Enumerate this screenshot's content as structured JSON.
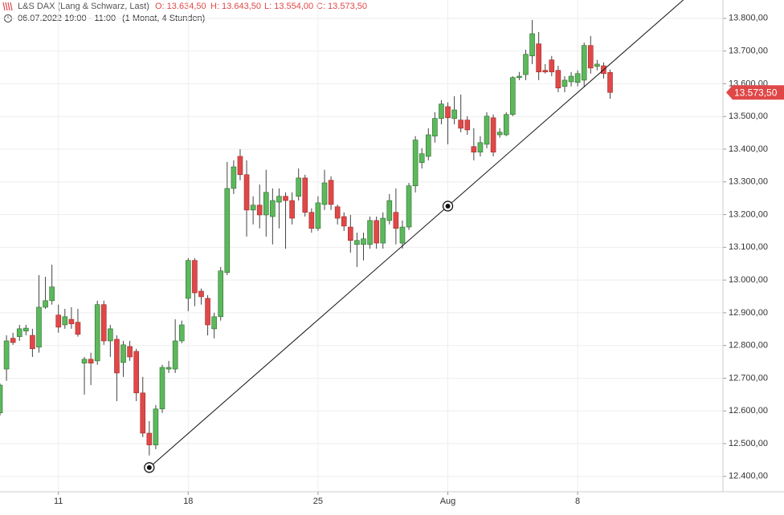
{
  "chart_data": {
    "type": "candlestick",
    "title": "L&S DAX (Lang & Schwarz, Last)",
    "summary": [
      "O: 13.634,50",
      "H: 13.643,50",
      "L: 13.554,00",
      "C: 13.573,50"
    ],
    "subtitle": "06.07.2022 19:00 - 11:00",
    "period": "(1 Monat, 4 Stunden)",
    "up_color": "#5cb85c",
    "down_color": "#e04848",
    "grid": true,
    "categories": [
      null,
      null,
      null,
      null,
      null,
      null,
      null,
      null,
      null,
      "11",
      null,
      null,
      null,
      null,
      null,
      null,
      null,
      null,
      null,
      null,
      null,
      null,
      null,
      null,
      null,
      null,
      null,
      null,
      null,
      "18",
      null,
      null,
      null,
      null,
      null,
      null,
      null,
      null,
      null,
      null,
      null,
      null,
      null,
      null,
      null,
      null,
      null,
      null,
      null,
      "25",
      null,
      null,
      null,
      null,
      null,
      null,
      null,
      null,
      null,
      null,
      null,
      null,
      null,
      null,
      null,
      null,
      null,
      null,
      null,
      "Aug",
      null,
      null,
      null,
      null,
      null,
      null,
      null,
      null,
      null,
      null,
      null,
      null,
      null,
      null,
      null,
      null,
      null,
      null,
      null,
      "8",
      null,
      null,
      null,
      null,
      null
    ],
    "open": [
      12594,
      12728,
      12822,
      12827,
      12844,
      12831,
      12795,
      12917,
      12937,
      12893,
      12863,
      12880,
      12871,
      12746,
      12758,
      12753,
      12925,
      12814,
      12819,
      12748,
      12797,
      12782,
      12655,
      12532,
      12496,
      12606,
      12728,
      12728,
      12814,
      12944,
      13060,
      12966,
      12944,
      12851,
      12888,
      13023,
      13280,
      13378,
      13322,
      13214,
      13229,
      13199,
      13194,
      13238,
      13256,
      13243,
      13256,
      13312,
      13207,
      13158,
      13231,
      13305,
      13224,
      13194,
      13162,
      13109,
      13109,
      13109,
      13182,
      13113,
      13182,
      13207,
      13113,
      13162,
      13288,
      13359,
      13378,
      13440,
      13494,
      13530,
      13494,
      13489,
      13489,
      13408,
      13391,
      13415,
      13496,
      13444,
      13444,
      13506,
      13619,
      13628,
      13685,
      13722,
      13641,
      13673,
      13641,
      13592,
      13606,
      13604,
      13611,
      13717,
      13653,
      13655,
      13634.5
    ],
    "high": [
      12684,
      12831,
      12839,
      12863,
      12863,
      12851,
      13015,
      13010,
      13047,
      12925,
      12912,
      12917,
      12912,
      12765,
      12778,
      12937,
      12937,
      12863,
      12831,
      12814,
      12814,
      12790,
      12704,
      12569,
      12618,
      12741,
      12753,
      12880,
      12876,
      13067,
      13067,
      12974,
      12954,
      12900,
      13040,
      13361,
      13366,
      13400,
      13366,
      13256,
      13292,
      13337,
      13280,
      13280,
      13268,
      13268,
      13341,
      13322,
      13219,
      13256,
      13337,
      13317,
      13231,
      13207,
      13199,
      13145,
      13145,
      13194,
      13194,
      13207,
      13263,
      13280,
      13182,
      13297,
      13440,
      13403,
      13464,
      13513,
      13550,
      13543,
      13562,
      13567,
      13501,
      13464,
      13440,
      13513,
      13506,
      13464,
      13513,
      13623,
      13636,
      13704,
      13795,
      13758,
      13660,
      13685,
      13655,
      13623,
      13636,
      13641,
      13726,
      13746,
      13673,
      13665,
      13643.5
    ],
    "low": [
      12586,
      12692,
      12802,
      12814,
      12831,
      12765,
      12778,
      12912,
      12925,
      12839,
      12851,
      12851,
      12827,
      12650,
      12679,
      12741,
      12802,
      12765,
      12630,
      12704,
      12753,
      12630,
      12520,
      12464,
      12483,
      12594,
      12716,
      12716,
      12807,
      12905,
      12920,
      12925,
      12831,
      12822,
      12876,
      13015,
      13263,
      13305,
      13133,
      13170,
      13158,
      13133,
      13109,
      13158,
      13096,
      13170,
      13243,
      13194,
      13145,
      13150,
      13214,
      13214,
      13170,
      13150,
      13084,
      13040,
      13060,
      13096,
      13096,
      13096,
      13170,
      13109,
      13096,
      13153,
      13268,
      13341,
      13366,
      13420,
      13476,
      13415,
      13476,
      13452,
      13444,
      13366,
      13378,
      13403,
      13378,
      13435,
      13440,
      13501,
      13611,
      13611,
      13660,
      13611,
      13631,
      13623,
      13574,
      13574,
      13592,
      13592,
      13592,
      13631,
      13641,
      13616,
      13554
    ],
    "close": [
      12679,
      12814,
      12809,
      12851,
      12853,
      12790,
      12917,
      12937,
      12979,
      12856,
      12888,
      12866,
      12834,
      12758,
      12746,
      12925,
      12814,
      12851,
      12716,
      12802,
      12765,
      12655,
      12532,
      12496,
      12606,
      12733,
      12733,
      12814,
      12863,
      13060,
      12961,
      12949,
      12863,
      12888,
      13028,
      13280,
      13346,
      13322,
      13214,
      13229,
      13199,
      13268,
      13243,
      13256,
      13243,
      13189,
      13312,
      13207,
      13158,
      13236,
      13297,
      13231,
      13189,
      13165,
      13121,
      13121,
      13126,
      13182,
      13113,
      13189,
      13243,
      13158,
      13162,
      13288,
      13428,
      13386,
      13444,
      13494,
      13538,
      13496,
      13520,
      13464,
      13459,
      13391,
      13420,
      13501,
      13391,
      13452,
      13506,
      13619,
      13623,
      13690,
      13753,
      13636,
      13636,
      13636,
      13587,
      13611,
      13623,
      13631,
      13717,
      13648,
      13660,
      13631,
      13573.5
    ],
    "ylim": [
      12353,
      13856
    ],
    "yticks": [
      {
        "value": 12400,
        "label": "12.400,00"
      },
      {
        "value": 12500,
        "label": "12.500,00"
      },
      {
        "value": 12600,
        "label": "12.600,00"
      },
      {
        "value": 12700,
        "label": "12.700,00"
      },
      {
        "value": 12800,
        "label": "12.800,00"
      },
      {
        "value": 12900,
        "label": "12.900,00"
      },
      {
        "value": 13000,
        "label": "13.000,00"
      },
      {
        "value": 13100,
        "label": "13.100,00"
      },
      {
        "value": 13200,
        "label": "13.200,00"
      },
      {
        "value": 13300,
        "label": "13.300,00"
      },
      {
        "value": 13400,
        "label": "13.400,00"
      },
      {
        "value": 13500,
        "label": "13.500,00"
      },
      {
        "value": 13600,
        "label": "13.600,00"
      },
      {
        "value": 13700,
        "label": "13.700,00"
      },
      {
        "value": 13800,
        "label": "13.800,00"
      }
    ],
    "last_price": {
      "value": 13573.5,
      "label": "13.573,50"
    },
    "trendline": {
      "start": [
        23,
        12427
      ],
      "end": [
        69,
        13226
      ]
    }
  }
}
